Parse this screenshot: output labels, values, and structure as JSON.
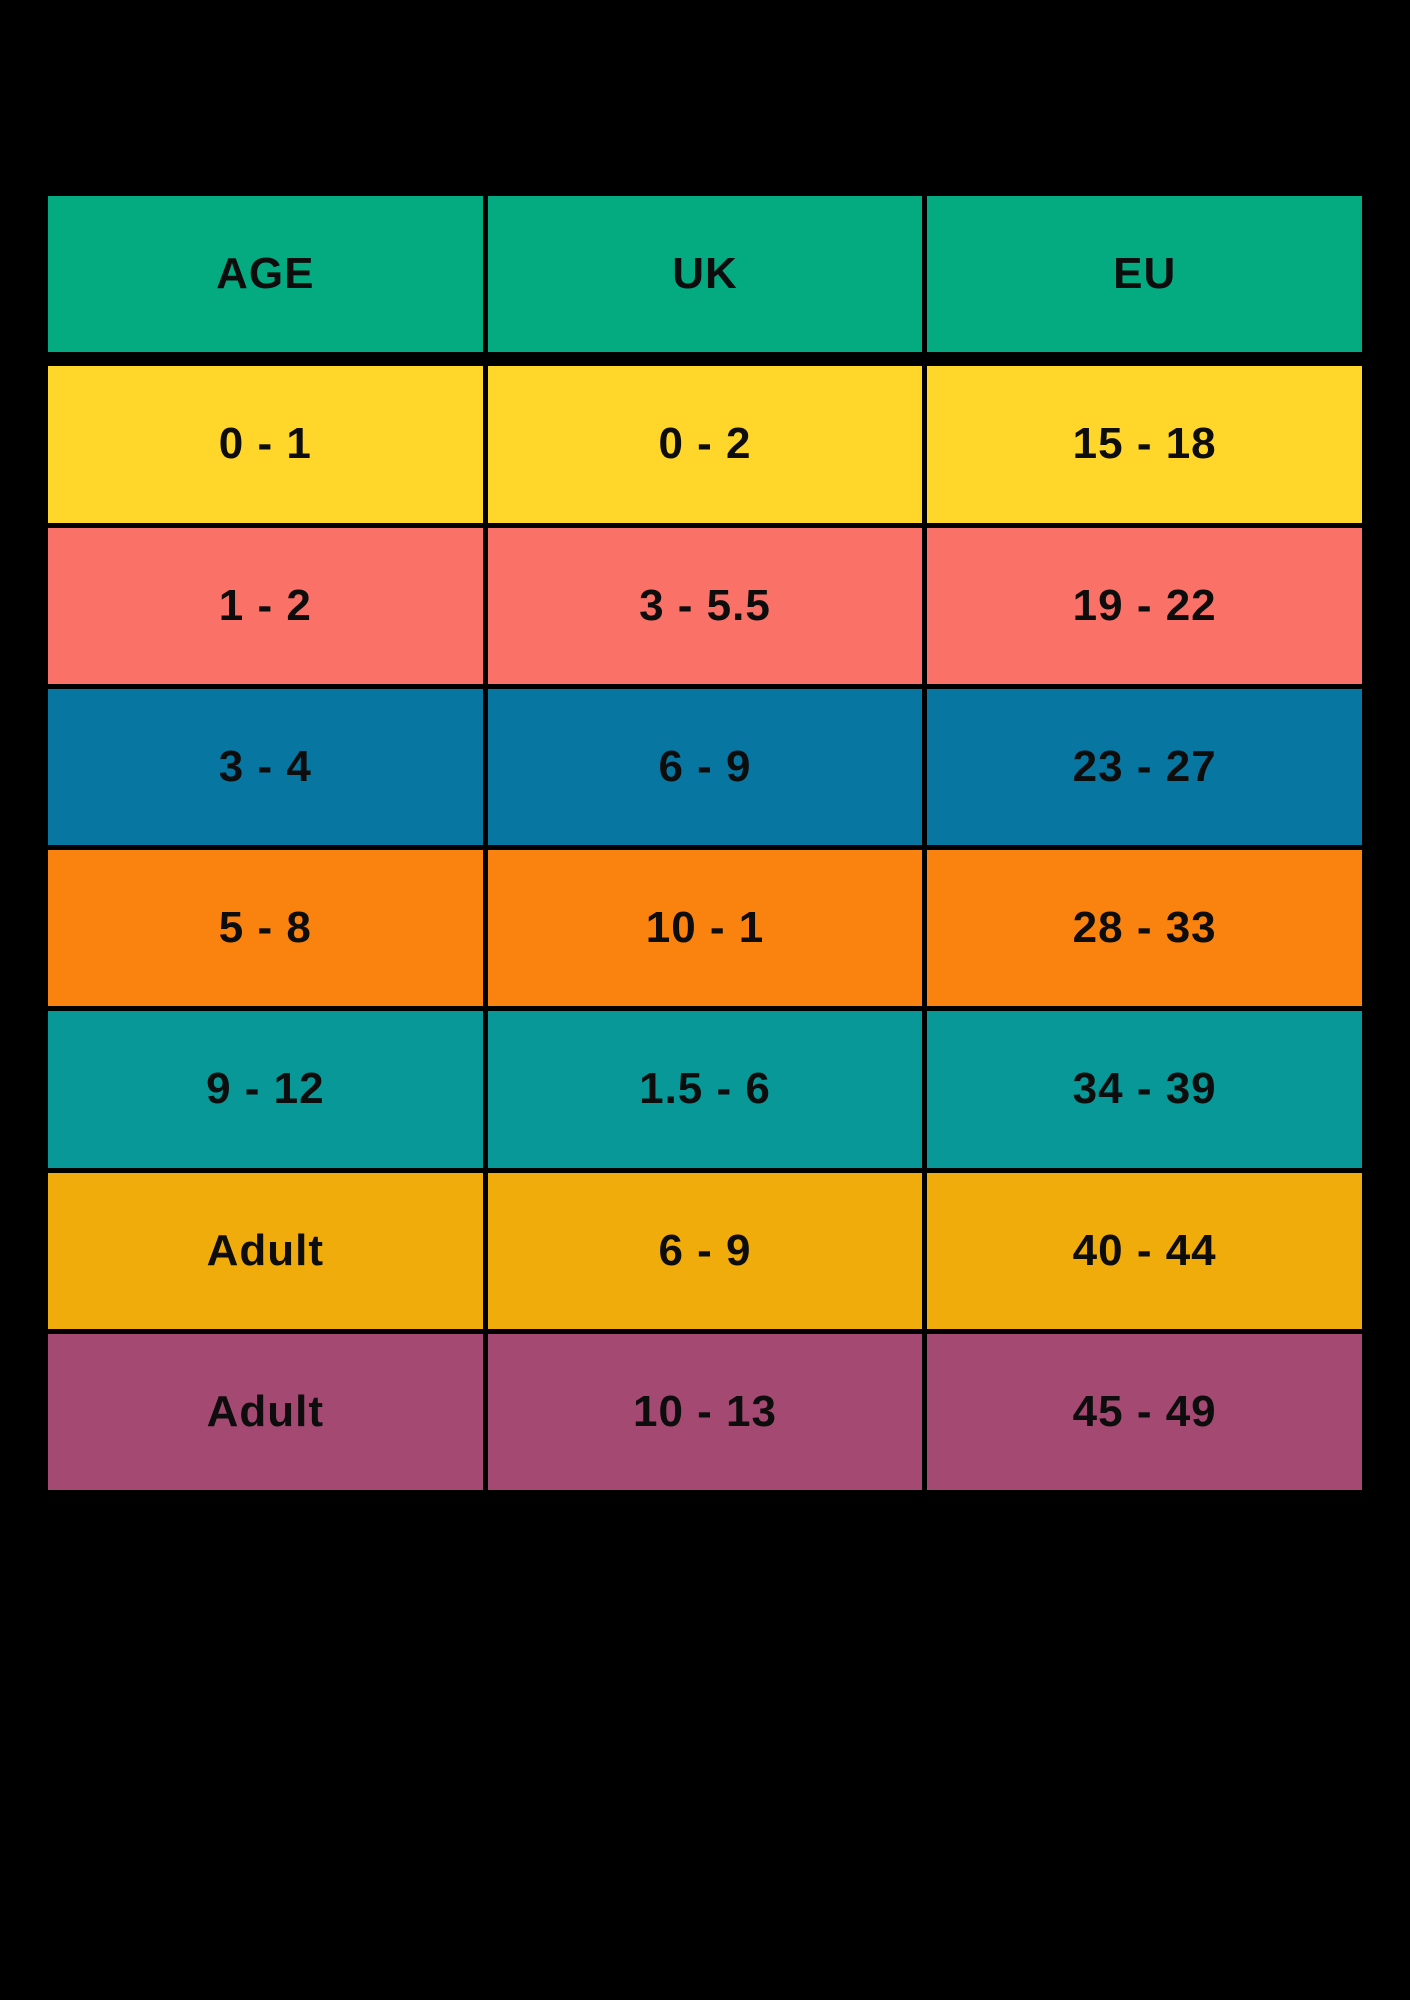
{
  "background": "#000000",
  "text_color": "#0d0d0d",
  "header": {
    "color": "#04AB81",
    "labels": [
      "AGE",
      "UK",
      "EU"
    ]
  },
  "rows": [
    {
      "age": "0 - 1",
      "uk": "0 - 2",
      "eu": "15 - 18",
      "color": "#FFD629"
    },
    {
      "age": "1 - 2",
      "uk": "3 - 5.5",
      "eu": "19 - 22",
      "color": "#FA7168"
    },
    {
      "age": "3 - 4",
      "uk": "6 - 9",
      "eu": "23 - 27",
      "color": "#0777A2"
    },
    {
      "age": "5 - 8",
      "uk": "10 - 1",
      "eu": "28 - 33",
      "color": "#FA820F"
    },
    {
      "age": "9 - 12",
      "uk": "1.5 - 6",
      "eu": "34 - 39",
      "color": "#089898"
    },
    {
      "age": "Adult",
      "uk": "6 - 9",
      "eu": "40 - 44",
      "color": "#F0AC0A"
    },
    {
      "age": "Adult",
      "uk": "10 - 13",
      "eu": "45 - 49",
      "color": "#A44A72"
    }
  ],
  "chart_data": {
    "type": "table",
    "columns": [
      "AGE",
      "UK",
      "EU"
    ],
    "rows": [
      [
        "0 - 1",
        "0 - 2",
        "15 - 18"
      ],
      [
        "1 - 2",
        "3 - 5.5",
        "19 - 22"
      ],
      [
        "3 - 4",
        "6 - 9",
        "23 - 27"
      ],
      [
        "5 - 8",
        "10 - 1",
        "28 - 33"
      ],
      [
        "9 - 12",
        "1.5 - 6",
        "34 - 39"
      ],
      [
        "Adult",
        "6 - 9",
        "40 - 44"
      ],
      [
        "Adult",
        "10 - 13",
        "45 - 49"
      ]
    ],
    "row_colors": [
      "#FFD629",
      "#FA7168",
      "#0777A2",
      "#FA820F",
      "#089898",
      "#F0AC0A",
      "#A44A72"
    ],
    "header_color": "#04AB81",
    "background": "#000000",
    "grid": "black cell borders",
    "legend": "none"
  }
}
